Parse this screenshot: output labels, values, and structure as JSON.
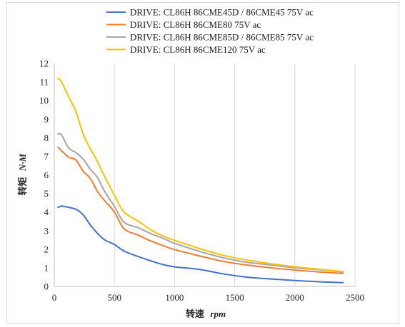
{
  "chart_data": {
    "type": "line",
    "title": "",
    "xlabel_prefix": "转速",
    "xlabel_unit": "rpm",
    "ylabel_prefix": "转矩",
    "ylabel_unit": "N·M",
    "xlim": [
      0,
      2500
    ],
    "ylim": [
      0,
      12
    ],
    "xticks": [
      0,
      500,
      1000,
      1500,
      2000,
      2500
    ],
    "yticks": [
      0,
      1,
      2,
      3,
      4,
      5,
      6,
      7,
      8,
      9,
      10,
      11,
      12
    ],
    "grid": "vertical",
    "legend_position": "top",
    "series": [
      {
        "name": "DRIVE: CL86H 86CME45D / 86CME45 75V ac",
        "color": "#4472c4",
        "points": [
          [
            30,
            4.25
          ],
          [
            60,
            4.32
          ],
          [
            100,
            4.28
          ],
          [
            180,
            4.15
          ],
          [
            240,
            3.85
          ],
          [
            300,
            3.3
          ],
          [
            360,
            2.85
          ],
          [
            420,
            2.5
          ],
          [
            500,
            2.25
          ],
          [
            580,
            1.9
          ],
          [
            700,
            1.6
          ],
          [
            800,
            1.38
          ],
          [
            900,
            1.18
          ],
          [
            1000,
            1.05
          ],
          [
            1200,
            0.92
          ],
          [
            1400,
            0.68
          ],
          [
            1600,
            0.5
          ],
          [
            1800,
            0.4
          ],
          [
            2000,
            0.32
          ],
          [
            2200,
            0.25
          ],
          [
            2400,
            0.2
          ]
        ]
      },
      {
        "name": "DRIVE: CL86H 86CME80 75V ac",
        "color": "#ed7d31",
        "points": [
          [
            30,
            7.5
          ],
          [
            60,
            7.3
          ],
          [
            120,
            6.95
          ],
          [
            180,
            6.8
          ],
          [
            240,
            6.2
          ],
          [
            300,
            5.8
          ],
          [
            360,
            5.1
          ],
          [
            420,
            4.6
          ],
          [
            500,
            4.0
          ],
          [
            580,
            3.1
          ],
          [
            700,
            2.75
          ],
          [
            800,
            2.45
          ],
          [
            900,
            2.2
          ],
          [
            1000,
            1.98
          ],
          [
            1200,
            1.65
          ],
          [
            1400,
            1.35
          ],
          [
            1600,
            1.15
          ],
          [
            1800,
            1.0
          ],
          [
            2000,
            0.88
          ],
          [
            2200,
            0.78
          ],
          [
            2400,
            0.7
          ]
        ]
      },
      {
        "name": "DRIVE: CL86H 86CME85D / 86CME85 75V ac",
        "color": "#a5a5a5",
        "points": [
          [
            30,
            8.2
          ],
          [
            60,
            8.15
          ],
          [
            120,
            7.45
          ],
          [
            180,
            7.2
          ],
          [
            240,
            6.85
          ],
          [
            300,
            6.3
          ],
          [
            360,
            5.85
          ],
          [
            420,
            5.1
          ],
          [
            500,
            4.3
          ],
          [
            580,
            3.45
          ],
          [
            700,
            3.15
          ],
          [
            800,
            2.85
          ],
          [
            900,
            2.6
          ],
          [
            1000,
            2.32
          ],
          [
            1200,
            1.9
          ],
          [
            1400,
            1.55
          ],
          [
            1600,
            1.3
          ],
          [
            1800,
            1.15
          ],
          [
            2000,
            1.0
          ],
          [
            2200,
            0.9
          ],
          [
            2400,
            0.78
          ]
        ]
      },
      {
        "name": "DRIVE: CL86H 86CME120 75V ac",
        "color": "#ffc000",
        "points": [
          [
            30,
            11.2
          ],
          [
            60,
            11.0
          ],
          [
            120,
            10.2
          ],
          [
            180,
            9.4
          ],
          [
            240,
            8.2
          ],
          [
            300,
            7.4
          ],
          [
            360,
            6.7
          ],
          [
            420,
            5.9
          ],
          [
            500,
            4.9
          ],
          [
            580,
            4.0
          ],
          [
            700,
            3.5
          ],
          [
            800,
            3.05
          ],
          [
            900,
            2.72
          ],
          [
            1000,
            2.48
          ],
          [
            1200,
            2.05
          ],
          [
            1400,
            1.68
          ],
          [
            1600,
            1.42
          ],
          [
            1800,
            1.22
          ],
          [
            2000,
            1.06
          ],
          [
            2200,
            0.92
          ],
          [
            2400,
            0.8
          ]
        ]
      }
    ]
  }
}
